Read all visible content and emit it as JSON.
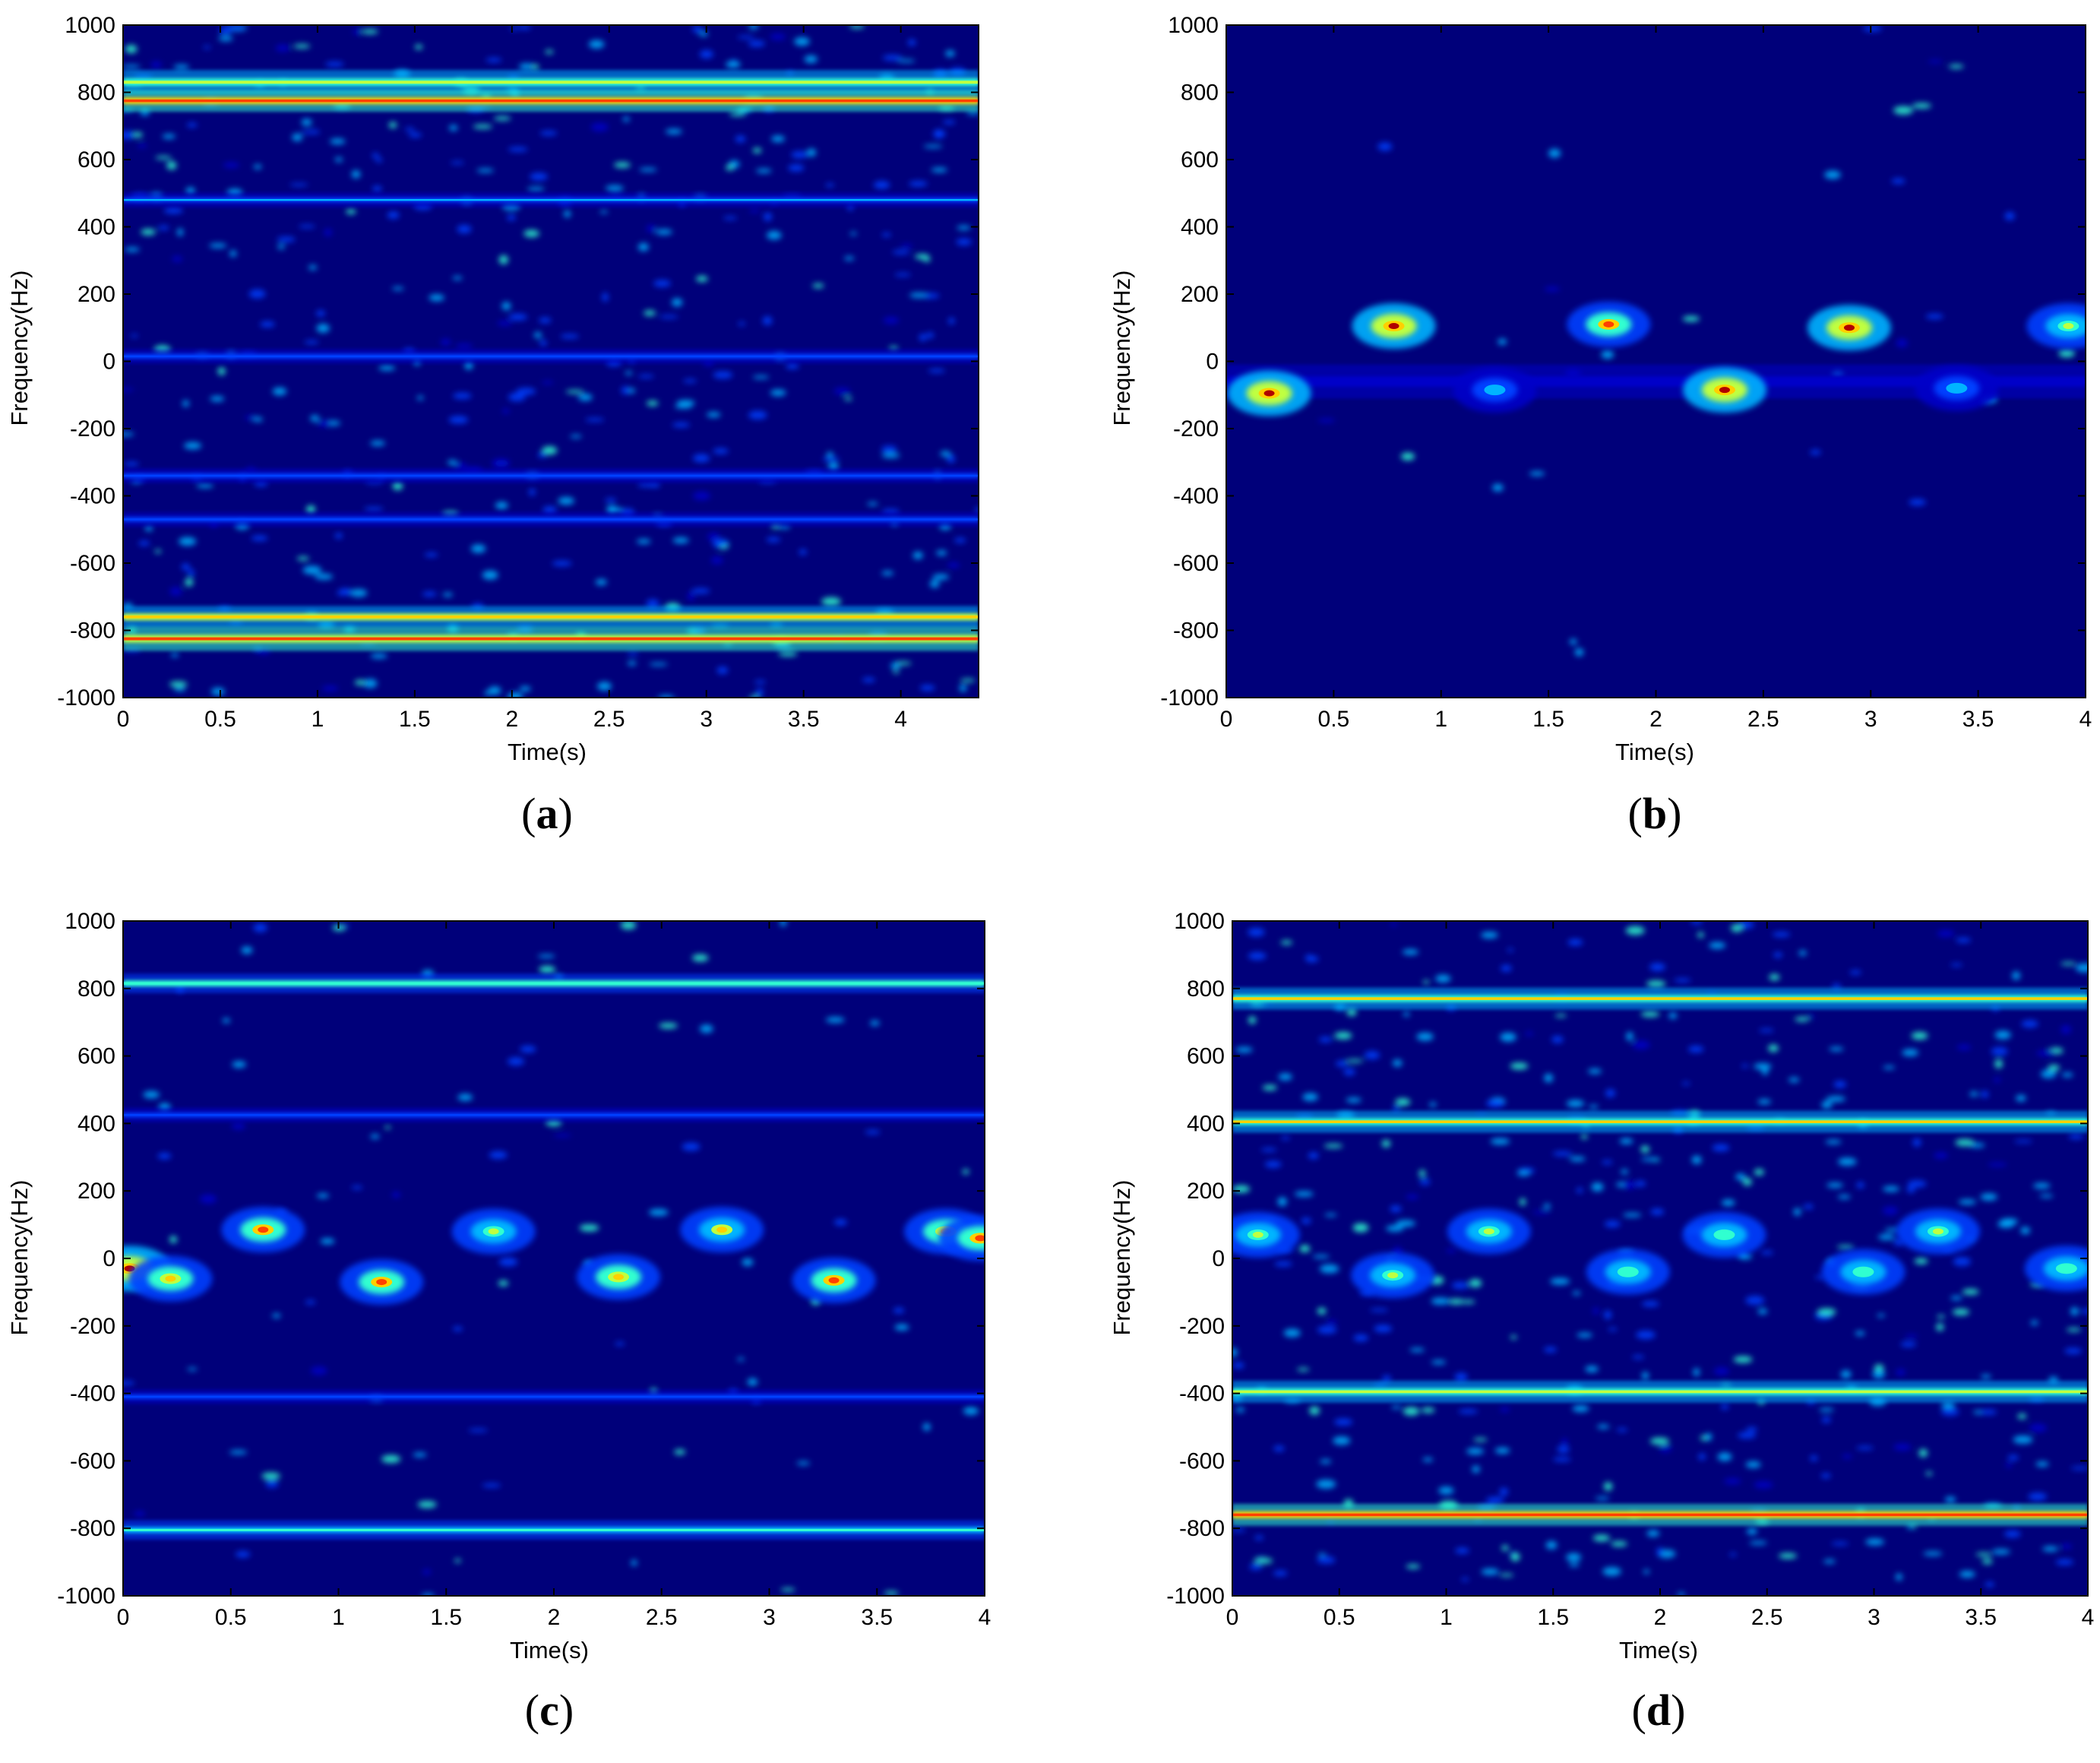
{
  "colors": {
    "background": "#00007a",
    "axis": "#000000",
    "colormap": [
      "#00007a",
      "#0000c8",
      "#0040ff",
      "#00b4ff",
      "#30ffd0",
      "#c0ff40",
      "#ffd000",
      "#ff4000",
      "#b00000"
    ]
  },
  "chart_data": [
    {
      "id": "a",
      "type": "heatmap",
      "panel_label": "a",
      "xlabel": "Time(s)",
      "ylabel": "Frequency(Hz)",
      "xlim": [
        0,
        4.4
      ],
      "ylim": [
        -1000,
        1000
      ],
      "xticks": [
        0,
        0.5,
        1,
        1.5,
        2,
        2.5,
        3,
        3.5,
        4
      ],
      "xtick_labels": [
        "0",
        "0.5",
        "1",
        "1.5",
        "2",
        "2.5",
        "3",
        "3.5",
        "4"
      ],
      "yticks": [
        1000,
        800,
        600,
        400,
        200,
        0,
        -200,
        -400,
        -600,
        -800,
        -1000
      ],
      "ytick_labels": [
        "1000",
        "800",
        "600",
        "400",
        "200",
        "0",
        "-200",
        "-400",
        "-600",
        "-800",
        "-1000"
      ],
      "noise_level": 0.3,
      "lines": [
        {
          "freq": 830,
          "intensity": 0.62,
          "width": 10
        },
        {
          "freq": 775,
          "intensity": 0.9,
          "width": 9
        },
        {
          "freq": 480,
          "intensity": 0.32,
          "width": 6
        },
        {
          "freq": 15,
          "intensity": 0.3,
          "width": 6
        },
        {
          "freq": -340,
          "intensity": 0.28,
          "width": 6
        },
        {
          "freq": -470,
          "intensity": 0.28,
          "width": 6
        },
        {
          "freq": -760,
          "intensity": 0.72,
          "width": 9
        },
        {
          "freq": -825,
          "intensity": 0.85,
          "width": 10
        }
      ],
      "features": []
    },
    {
      "id": "b",
      "type": "heatmap",
      "panel_label": "b",
      "xlabel": "Time(s)",
      "ylabel": "Frequency(Hz)",
      "xlim": [
        0,
        4
      ],
      "ylim": [
        -1000,
        1000
      ],
      "xticks": [
        0,
        0.5,
        1,
        1.5,
        2,
        2.5,
        3,
        3.5,
        4
      ],
      "xtick_labels": [
        "0",
        "0.5",
        "1",
        "1.5",
        "2",
        "2.5",
        "3",
        "3.5",
        "4"
      ],
      "yticks": [
        1000,
        800,
        600,
        400,
        200,
        0,
        -200,
        -400,
        -600,
        -800,
        -1000
      ],
      "ytick_labels": [
        "1000",
        "800",
        "600",
        "400",
        "200",
        "0",
        "-200",
        "-400",
        "-600",
        "-800",
        "-1000"
      ],
      "noise_level": 0.02,
      "lines": [
        {
          "freq": -60,
          "intensity": 0.14,
          "width": 14
        }
      ],
      "features": [
        {
          "t": 0.2,
          "freq": -95,
          "intensity": 0.95
        },
        {
          "t": 0.78,
          "freq": 105,
          "intensity": 0.95
        },
        {
          "t": 1.25,
          "freq": -85,
          "intensity": 0.4
        },
        {
          "t": 1.78,
          "freq": 110,
          "intensity": 0.82
        },
        {
          "t": 2.32,
          "freq": -85,
          "intensity": 0.95
        },
        {
          "t": 2.9,
          "freq": 100,
          "intensity": 0.95
        },
        {
          "t": 3.4,
          "freq": -80,
          "intensity": 0.4
        },
        {
          "t": 3.92,
          "freq": 105,
          "intensity": 0.6
        }
      ]
    },
    {
      "id": "c",
      "type": "heatmap",
      "panel_label": "c",
      "xlabel": "Time(s)",
      "ylabel": "Frequency(Hz)",
      "xlim": [
        0,
        4
      ],
      "ylim": [
        -1000,
        1000
      ],
      "xticks": [
        0,
        0.5,
        1,
        1.5,
        2,
        2.5,
        3,
        3.5,
        4
      ],
      "xtick_labels": [
        "0",
        "0.5",
        "1",
        "1.5",
        "2",
        "2.5",
        "3",
        "3.5",
        "4"
      ],
      "yticks": [
        1000,
        800,
        600,
        400,
        200,
        0,
        -200,
        -400,
        -600,
        -800,
        -1000
      ],
      "ytick_labels": [
        "1000",
        "800",
        "600",
        "400",
        "200",
        "0",
        "-200",
        "-400",
        "-600",
        "-800",
        "-1000"
      ],
      "noise_level": 0.06,
      "lines": [
        {
          "freq": 815,
          "intensity": 0.55,
          "width": 8
        },
        {
          "freq": 425,
          "intensity": 0.3,
          "width": 6
        },
        {
          "freq": -410,
          "intensity": 0.3,
          "width": 6
        },
        {
          "freq": -805,
          "intensity": 0.5,
          "width": 8
        }
      ],
      "features": [
        {
          "t": 0.03,
          "freq": -30,
          "intensity": 0.95
        },
        {
          "t": 0.22,
          "freq": -60,
          "intensity": 0.8
        },
        {
          "t": 0.65,
          "freq": 85,
          "intensity": 0.85
        },
        {
          "t": 1.2,
          "freq": -70,
          "intensity": 0.85
        },
        {
          "t": 1.72,
          "freq": 80,
          "intensity": 0.6
        },
        {
          "t": 2.3,
          "freq": -55,
          "intensity": 0.8
        },
        {
          "t": 2.78,
          "freq": 85,
          "intensity": 0.7
        },
        {
          "t": 3.3,
          "freq": -65,
          "intensity": 0.85
        },
        {
          "t": 3.82,
          "freq": 80,
          "intensity": 0.8
        },
        {
          "t": 3.98,
          "freq": 60,
          "intensity": 0.85
        }
      ]
    },
    {
      "id": "d",
      "type": "heatmap",
      "panel_label": "d",
      "xlabel": "Time(s)",
      "ylabel": "Frequency(Hz)",
      "xlim": [
        0,
        4
      ],
      "ylim": [
        -1000,
        1000
      ],
      "xticks": [
        0,
        0.5,
        1,
        1.5,
        2,
        2.5,
        3,
        3.5,
        4
      ],
      "xtick_labels": [
        "0",
        "0.5",
        "1",
        "1.5",
        "2",
        "2.5",
        "3",
        "3.5",
        "4"
      ],
      "yticks": [
        1000,
        800,
        600,
        400,
        200,
        0,
        -200,
        -400,
        -600,
        -800,
        -1000
      ],
      "ytick_labels": [
        "1000",
        "800",
        "600",
        "400",
        "200",
        "0",
        "-200",
        "-400",
        "-600",
        "-800",
        "-1000"
      ],
      "noise_level": 0.3,
      "lines": [
        {
          "freq": 770,
          "intensity": 0.7,
          "width": 9
        },
        {
          "freq": 405,
          "intensity": 0.7,
          "width": 9
        },
        {
          "freq": -395,
          "intensity": 0.6,
          "width": 9
        },
        {
          "freq": -760,
          "intensity": 0.9,
          "width": 9
        }
      ],
      "features": [
        {
          "t": 0.12,
          "freq": 70,
          "intensity": 0.6
        },
        {
          "t": 0.75,
          "freq": -50,
          "intensity": 0.6
        },
        {
          "t": 1.2,
          "freq": 80,
          "intensity": 0.6
        },
        {
          "t": 1.85,
          "freq": -40,
          "intensity": 0.55
        },
        {
          "t": 2.3,
          "freq": 70,
          "intensity": 0.55
        },
        {
          "t": 2.95,
          "freq": -40,
          "intensity": 0.55
        },
        {
          "t": 3.3,
          "freq": 80,
          "intensity": 0.6
        },
        {
          "t": 3.9,
          "freq": -30,
          "intensity": 0.55
        }
      ]
    }
  ]
}
